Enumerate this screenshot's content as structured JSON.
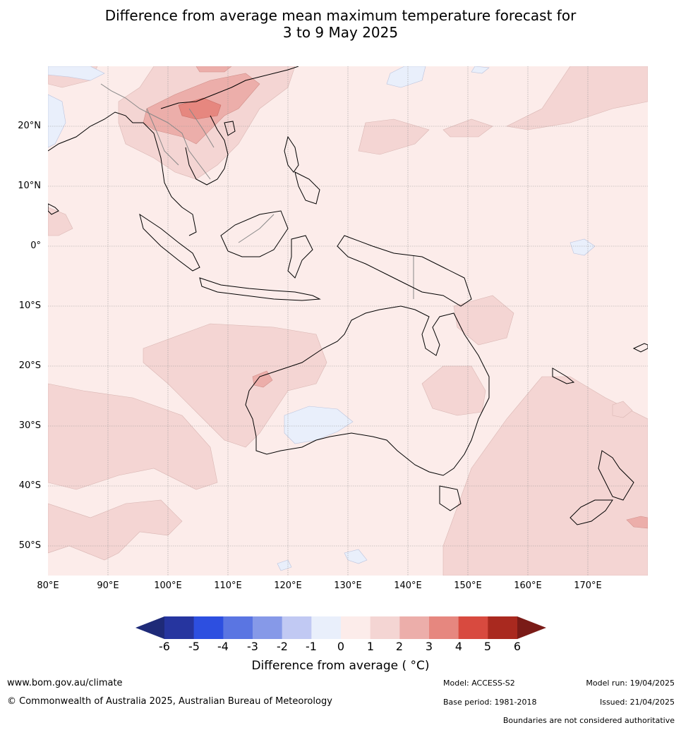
{
  "title": {
    "line1": "Difference from average mean maximum temperature forecast for",
    "line2": "3 to 9 May 2025"
  },
  "map": {
    "lat_labels": [
      "20°N",
      "10°N",
      "0°",
      "10°S",
      "20°S",
      "30°S",
      "40°S",
      "50°S"
    ],
    "lon_labels": [
      "80°E",
      "90°E",
      "100°E",
      "110°E",
      "120°E",
      "130°E",
      "140°E",
      "150°E",
      "160°E",
      "170°E"
    ],
    "extent": {
      "lon": [
        80,
        180
      ],
      "lat": [
        -55,
        30
      ]
    },
    "colors": {
      "anomaly_0_1": "#fcecea",
      "anomaly_1_2": "#f4d5d3",
      "anomaly_2_3": "#ecaeaa",
      "anomaly_3_4": "#e6877f",
      "anomaly_-1_0": "#e9effb",
      "coast": "#000000",
      "borders": "#888888",
      "grid": "#999999"
    }
  },
  "colorbar": {
    "ticks": [
      "-6",
      "-5",
      "-4",
      "-3",
      "-2",
      "-1",
      "0",
      "1",
      "2",
      "3",
      "4",
      "5",
      "6"
    ],
    "colors": [
      "#26359f",
      "#2d4fe0",
      "#5a75e2",
      "#8699e8",
      "#c1c9f3",
      "#e9effb",
      "#fcecea",
      "#f4d5d3",
      "#ecaeaa",
      "#e6877f",
      "#d84a3f",
      "#a9291f"
    ],
    "low_extend_color": "#1e2a78",
    "high_extend_color": "#7a1b17",
    "label": "Difference from average ( °C)"
  },
  "footer": {
    "website": "www.bom.gov.au/climate",
    "copyright": "© Commonwealth of Australia 2025, Australian Bureau of Meteorology",
    "model": "Model: ACCESS-S2",
    "base_period": "Base period: 1981-2018",
    "model_run": "Model run: 19/04/2025",
    "issued": "Issued: 21/04/2025",
    "disclaimer": "Boundaries are not considered authoritative"
  }
}
